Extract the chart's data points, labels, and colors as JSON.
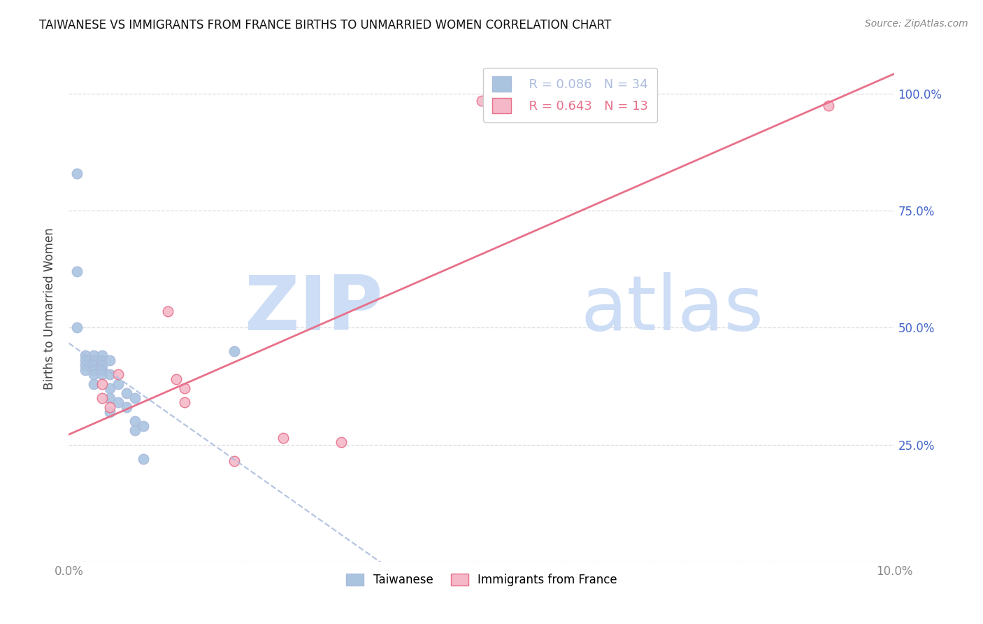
{
  "title": "TAIWANESE VS IMMIGRANTS FROM FRANCE BIRTHS TO UNMARRIED WOMEN CORRELATION CHART",
  "source": "Source: ZipAtlas.com",
  "ylabel": "Births to Unmarried Women",
  "xlim": [
    0.0,
    0.1
  ],
  "ylim": [
    0.0,
    1.08
  ],
  "yticks": [
    0.0,
    0.25,
    0.5,
    0.75,
    1.0
  ],
  "ytick_labels": [
    "",
    "25.0%",
    "50.0%",
    "75.0%",
    "100.0%"
  ],
  "xticks": [
    0.0,
    0.01,
    0.02,
    0.03,
    0.04,
    0.05,
    0.06,
    0.07,
    0.08,
    0.09,
    0.1
  ],
  "xtick_labels": [
    "0.0%",
    "",
    "",
    "",
    "",
    "",
    "",
    "",
    "",
    "",
    "10.0%"
  ],
  "taiwanese_color": "#aac4e0",
  "france_color": "#f4b8c8",
  "taiwanese_R": 0.086,
  "taiwanese_N": 34,
  "france_R": 0.643,
  "france_N": 13,
  "watermark_zip": "ZIP",
  "watermark_atlas": "atlas",
  "watermark_color": "#ccddf5",
  "legend_taiwan_label": "Taiwanese",
  "legend_france_label": "Immigrants from France",
  "taiwanese_x": [
    0.001,
    0.001,
    0.001,
    0.002,
    0.002,
    0.002,
    0.002,
    0.003,
    0.003,
    0.003,
    0.003,
    0.003,
    0.003,
    0.003,
    0.004,
    0.004,
    0.004,
    0.004,
    0.004,
    0.005,
    0.005,
    0.005,
    0.005,
    0.005,
    0.006,
    0.006,
    0.007,
    0.007,
    0.008,
    0.008,
    0.008,
    0.009,
    0.009,
    0.02
  ],
  "taiwanese_y": [
    0.83,
    0.62,
    0.5,
    0.44,
    0.43,
    0.42,
    0.41,
    0.44,
    0.43,
    0.42,
    0.42,
    0.41,
    0.4,
    0.38,
    0.44,
    0.43,
    0.42,
    0.41,
    0.4,
    0.43,
    0.4,
    0.37,
    0.35,
    0.32,
    0.38,
    0.34,
    0.36,
    0.33,
    0.35,
    0.3,
    0.28,
    0.29,
    0.22,
    0.45
  ],
  "france_x": [
    0.004,
    0.004,
    0.005,
    0.006,
    0.012,
    0.013,
    0.014,
    0.014,
    0.02,
    0.026,
    0.033,
    0.05,
    0.092
  ],
  "france_y": [
    0.38,
    0.35,
    0.33,
    0.4,
    0.535,
    0.39,
    0.37,
    0.34,
    0.215,
    0.265,
    0.255,
    0.985,
    0.975
  ],
  "taiwan_line_color": "#aabbdd",
  "france_line_color": "#e8708a",
  "grid_color": "#dddddd",
  "title_color": "#111111",
  "axis_label_color": "#444444",
  "right_axis_color": "#4466cc",
  "xtick_color": "#888888"
}
